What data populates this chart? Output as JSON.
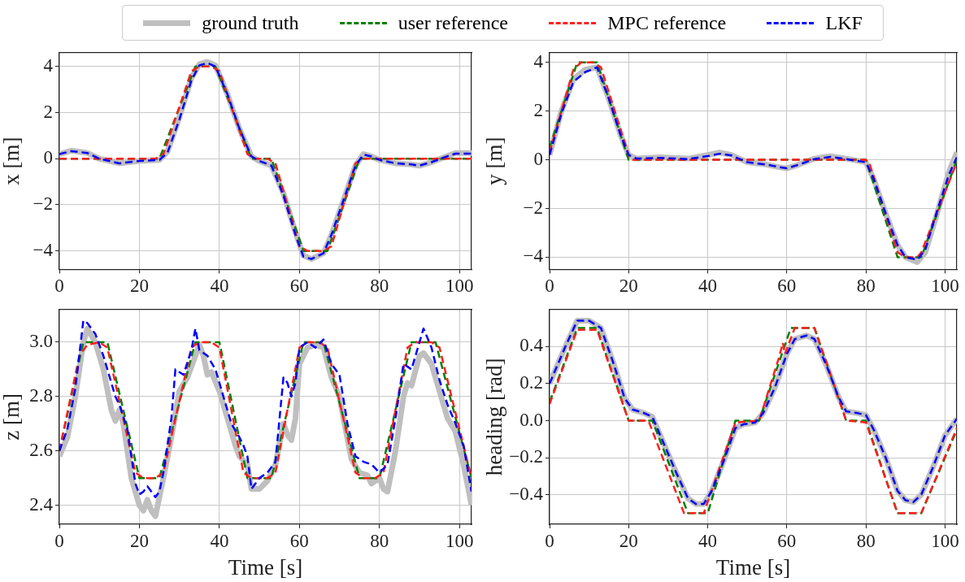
{
  "chart_data": [
    {
      "type": "line",
      "ylabel": "x [m]",
      "xlim": [
        0,
        103
      ],
      "xticks": [
        0,
        20,
        40,
        60,
        80,
        100
      ],
      "ylim": [
        -4.8,
        4.6
      ],
      "yticks": [
        -4,
        -2,
        0,
        2,
        4
      ],
      "grid": true,
      "legend": "top",
      "marker": "none",
      "series": [
        {
          "name": "ground truth",
          "color": "#bfbfbf",
          "line_style": "solid",
          "x": [
            0,
            3,
            7,
            10,
            15,
            20,
            25,
            27,
            30,
            33,
            35,
            37,
            39,
            42,
            45,
            48,
            50,
            53,
            56,
            59,
            61,
            63,
            66,
            68,
            71,
            74,
            76,
            78,
            80,
            84,
            88,
            90,
            93,
            96,
            99,
            103
          ],
          "values": [
            0.2,
            0.35,
            0.25,
            0,
            -0.2,
            -0.1,
            -0.05,
            0.3,
            1.8,
            3.5,
            4.1,
            4.2,
            4.05,
            2.8,
            1.3,
            0.1,
            -0.1,
            -0.3,
            -1.5,
            -3.2,
            -4.2,
            -4.35,
            -4.1,
            -3.3,
            -1.8,
            -0.3,
            0.2,
            0.1,
            -0.05,
            -0.2,
            -0.25,
            -0.3,
            -0.15,
            0.05,
            0.25,
            0.25
          ]
        },
        {
          "name": "user reference",
          "color": "#008000",
          "line_style": "dashed",
          "x": [
            0,
            25,
            34,
            39,
            48,
            53,
            61,
            67,
            75,
            103
          ],
          "values": [
            0,
            0,
            4,
            4,
            0,
            0,
            -4,
            -4,
            0,
            0
          ]
        },
        {
          "name": "MPC reference",
          "color": "#ff2020",
          "line_style": "dashed",
          "x": [
            0,
            24,
            26,
            33,
            35,
            38,
            40,
            47,
            49,
            52,
            54,
            60,
            62,
            66,
            68,
            74,
            76,
            103
          ],
          "values": [
            0,
            0,
            0.2,
            3.8,
            4,
            4,
            3.8,
            0.2,
            0,
            0,
            -0.2,
            -3.8,
            -4,
            -4,
            -3.8,
            -0.2,
            0,
            0
          ]
        },
        {
          "name": "LKF",
          "color": "#0000ff",
          "line_style": "dashed",
          "x": [
            0,
            3,
            7,
            10,
            15,
            20,
            25,
            27,
            30,
            33,
            35,
            37,
            39,
            42,
            45,
            48,
            50,
            53,
            56,
            59,
            61,
            63,
            66,
            68,
            71,
            74,
            76,
            78,
            80,
            84,
            88,
            90,
            93,
            96,
            99,
            103
          ],
          "values": [
            0.2,
            0.33,
            0.25,
            0,
            -0.2,
            -0.1,
            -0.05,
            0.25,
            1.7,
            3.4,
            4.05,
            4.15,
            4.0,
            2.8,
            1.3,
            0.1,
            -0.1,
            -0.3,
            -1.6,
            -3.3,
            -4.25,
            -4.35,
            -4.1,
            -3.3,
            -1.8,
            -0.3,
            0.18,
            0.1,
            -0.05,
            -0.2,
            -0.25,
            -0.3,
            -0.15,
            0.05,
            0.22,
            0.22
          ]
        }
      ]
    },
    {
      "type": "line",
      "ylabel": "y [m]",
      "xlim": [
        0,
        103
      ],
      "xticks": [
        0,
        20,
        40,
        60,
        80,
        100
      ],
      "ylim": [
        -4.5,
        4.4
      ],
      "yticks": [
        -4,
        -2,
        0,
        2,
        4
      ],
      "grid": true,
      "marker": "none",
      "series": [
        {
          "color": "#bfbfbf",
          "line_style": "solid",
          "x": [
            0,
            3,
            6,
            9,
            12,
            15,
            18,
            20,
            22,
            28,
            35,
            40,
            43,
            46,
            50,
            55,
            58,
            60,
            63,
            67,
            71,
            75,
            80,
            82,
            85,
            88,
            90,
            93,
            95,
            98,
            101,
            103
          ],
          "values": [
            0.2,
            2,
            3.3,
            3.7,
            3.8,
            2.5,
            1,
            0.2,
            0.05,
            0.1,
            0.05,
            0.2,
            0.3,
            0.2,
            -0.1,
            -0.2,
            -0.3,
            -0.35,
            -0.2,
            0.05,
            0.15,
            0.05,
            -0.1,
            -0.8,
            -2.2,
            -3.5,
            -4,
            -4.2,
            -3.8,
            -2.2,
            -0.5,
            0.3
          ]
        },
        {
          "color": "#008000",
          "line_style": "dashed",
          "x": [
            0,
            7,
            12,
            20,
            80,
            88,
            94,
            103
          ],
          "values": [
            0.5,
            4,
            4,
            0,
            0,
            -4,
            -4,
            0
          ]
        },
        {
          "color": "#ff2020",
          "line_style": "dashed",
          "x": [
            0,
            6,
            8,
            11,
            13,
            20,
            21,
            80,
            81,
            88,
            90,
            93,
            94,
            103
          ],
          "values": [
            0.3,
            3.7,
            4,
            4,
            3.8,
            0.2,
            0,
            0,
            -0.2,
            -3.8,
            -4,
            -4,
            -3.8,
            -0.1
          ]
        },
        {
          "color": "#0000ff",
          "line_style": "dashed",
          "x": [
            0,
            3,
            6,
            9,
            12,
            15,
            18,
            20,
            22,
            28,
            35,
            40,
            43,
            46,
            50,
            55,
            58,
            60,
            63,
            67,
            71,
            75,
            80,
            82,
            85,
            88,
            90,
            93,
            95,
            98,
            101,
            103
          ],
          "values": [
            0.2,
            1.9,
            3.2,
            3.6,
            3.8,
            2.5,
            1,
            0.2,
            0.05,
            0.08,
            0.03,
            0.15,
            0.25,
            0.18,
            -0.1,
            -0.2,
            -0.3,
            -0.35,
            -0.2,
            0.03,
            0.12,
            0.03,
            -0.1,
            -0.8,
            -2.2,
            -3.5,
            -4,
            -4.1,
            -3.7,
            -2.1,
            -0.6,
            0.1
          ]
        }
      ]
    },
    {
      "type": "line",
      "ylabel": "z [m]",
      "xlabel": "Time [s]",
      "xlim": [
        0,
        103
      ],
      "xticks": [
        0,
        20,
        40,
        60,
        80,
        100
      ],
      "ylim": [
        2.33,
        3.12
      ],
      "yticks": [
        {
          "value": 2.4,
          "label": "2.4"
        },
        {
          "value": 2.6,
          "label": "2.6"
        },
        {
          "value": 2.8,
          "label": "2.8"
        },
        {
          "value": 3.0,
          "label": "3.0"
        }
      ],
      "grid": true,
      "marker": "none",
      "series": [
        {
          "color": "#bfbfbf",
          "line_style": "solid",
          "x": [
            0,
            2,
            4,
            6,
            7,
            9,
            11,
            13,
            14,
            15,
            16,
            18,
            20,
            21,
            22,
            23,
            24,
            26,
            28,
            30,
            32,
            34,
            35,
            36,
            37,
            38,
            40,
            42,
            44,
            45,
            47,
            48,
            50,
            52,
            54,
            56,
            57,
            58,
            59,
            60,
            62,
            64,
            66,
            68,
            70,
            71,
            73,
            75,
            77,
            78,
            80,
            81,
            82,
            84,
            86,
            87,
            88,
            90,
            91,
            93,
            95,
            97,
            99,
            101,
            103
          ],
          "values": [
            2.58,
            2.65,
            2.8,
            3.0,
            3.05,
            3.0,
            2.9,
            2.75,
            2.71,
            2.75,
            2.7,
            2.5,
            2.4,
            2.38,
            2.42,
            2.38,
            2.36,
            2.5,
            2.65,
            2.82,
            2.87,
            2.95,
            2.99,
            2.95,
            2.88,
            2.89,
            2.82,
            2.72,
            2.62,
            2.58,
            2.55,
            2.46,
            2.46,
            2.49,
            2.55,
            2.7,
            2.66,
            2.64,
            2.72,
            2.92,
            2.98,
            2.99,
            2.98,
            2.87,
            2.8,
            2.72,
            2.57,
            2.52,
            2.51,
            2.48,
            2.5,
            2.46,
            2.45,
            2.6,
            2.8,
            2.85,
            2.84,
            2.95,
            2.96,
            2.92,
            2.82,
            2.72,
            2.67,
            2.55,
            2.4
          ]
        },
        {
          "color": "#008000",
          "line_style": "dashed",
          "x": [
            0,
            6,
            12,
            20,
            25,
            34,
            40,
            47,
            53,
            61,
            66,
            75,
            80,
            88,
            94,
            103
          ],
          "values": [
            2.6,
            3.0,
            3.0,
            2.5,
            2.5,
            3.0,
            3.0,
            2.5,
            2.5,
            3.0,
            3.0,
            2.5,
            2.5,
            3.0,
            3.0,
            2.5
          ]
        },
        {
          "color": "#ff2020",
          "line_style": "dashed",
          "x": [
            0,
            5,
            7,
            10,
            12,
            19,
            21,
            24,
            26,
            33,
            35,
            38,
            40,
            46,
            48,
            52,
            54,
            60,
            62,
            65,
            67,
            74,
            76,
            79,
            81,
            87,
            89,
            93,
            95,
            103
          ],
          "values": [
            2.6,
            2.95,
            2.99,
            3.0,
            2.98,
            2.52,
            2.5,
            2.5,
            2.52,
            2.98,
            3.0,
            3.0,
            2.98,
            2.52,
            2.5,
            2.5,
            2.52,
            2.98,
            3.0,
            3.0,
            2.98,
            2.52,
            2.5,
            2.5,
            2.52,
            2.98,
            3.0,
            3.0,
            2.98,
            2.5
          ]
        },
        {
          "color": "#0000ff",
          "line_style": "dashed",
          "x": [
            0,
            2,
            4,
            6,
            7,
            9,
            11,
            13,
            14,
            15,
            17,
            19,
            20,
            21,
            22,
            24,
            25,
            26,
            28,
            29,
            31,
            33,
            34,
            35,
            37,
            39,
            41,
            43,
            45,
            46,
            47,
            48,
            50,
            52,
            54,
            56,
            57,
            58,
            59,
            60,
            62,
            64,
            66,
            68,
            70,
            72,
            74,
            76,
            78,
            80,
            82,
            84,
            86,
            88,
            90,
            91,
            93,
            95,
            97,
            99,
            101,
            103
          ],
          "values": [
            2.6,
            2.68,
            2.83,
            3.08,
            3.07,
            3.03,
            2.95,
            2.85,
            2.8,
            2.77,
            2.68,
            2.48,
            2.44,
            2.45,
            2.47,
            2.43,
            2.45,
            2.52,
            2.72,
            2.9,
            2.88,
            2.97,
            3.05,
            2.97,
            2.95,
            2.9,
            2.8,
            2.7,
            2.65,
            2.62,
            2.58,
            2.46,
            2.5,
            2.52,
            2.56,
            2.87,
            2.85,
            2.8,
            2.85,
            2.98,
            3.0,
            2.98,
            3.01,
            2.92,
            2.88,
            2.7,
            2.58,
            2.56,
            2.55,
            2.52,
            2.55,
            2.72,
            2.92,
            2.9,
            3.0,
            3.05,
            2.98,
            2.86,
            2.77,
            2.7,
            2.62,
            2.45
          ]
        }
      ]
    },
    {
      "type": "line",
      "ylabel": "heading [rad]",
      "xlabel": "Time [s]",
      "xlim": [
        0,
        103
      ],
      "xticks": [
        0,
        20,
        40,
        60,
        80,
        100
      ],
      "ylim": [
        -0.56,
        0.6
      ],
      "yticks": [
        -0.4,
        -0.2,
        {
          "value": 0,
          "label": "0.0"
        },
        0.2,
        0.4
      ],
      "grid": true,
      "marker": "none",
      "series": [
        {
          "color": "#bfbfbf",
          "line_style": "solid",
          "x": [
            0,
            4,
            7,
            10,
            13,
            16,
            19,
            21,
            24,
            26,
            28,
            32,
            35,
            37,
            39,
            41,
            44,
            47,
            49,
            52,
            54,
            57,
            60,
            62,
            65,
            67,
            70,
            73,
            75,
            78,
            80,
            82,
            85,
            88,
            90,
            92,
            94,
            97,
            100,
            103
          ],
          "values": [
            0.2,
            0.4,
            0.54,
            0.54,
            0.5,
            0.32,
            0.12,
            0.06,
            0.04,
            0.02,
            -0.08,
            -0.28,
            -0.42,
            -0.45,
            -0.45,
            -0.38,
            -0.22,
            -0.04,
            -0.02,
            -0.01,
            0.04,
            0.18,
            0.36,
            0.44,
            0.46,
            0.44,
            0.3,
            0.13,
            0.05,
            0.04,
            0.03,
            -0.05,
            -0.2,
            -0.38,
            -0.43,
            -0.44,
            -0.4,
            -0.25,
            -0.08,
            0.01
          ]
        },
        {
          "color": "#008000",
          "line_style": "dashed",
          "x": [
            0,
            7,
            12,
            20,
            26,
            35,
            40,
            47,
            53,
            61,
            67,
            75,
            80,
            88,
            94,
            103
          ],
          "values": [
            0.1,
            0.5,
            0.5,
            0,
            0,
            -0.5,
            -0.5,
            0,
            0,
            0.5,
            0.5,
            0,
            0,
            -0.5,
            -0.5,
            -0.05
          ]
        },
        {
          "color": "#ff2020",
          "line_style": "dashed",
          "x": [
            0,
            7,
            12,
            20,
            25,
            34,
            39,
            47,
            53,
            58,
            59,
            59.5,
            62,
            67,
            75,
            80,
            88,
            94,
            103
          ],
          "values": [
            0.09,
            0.49,
            0.49,
            0,
            0,
            -0.5,
            -0.5,
            -0.01,
            0,
            0.34,
            0.42,
            0.36,
            0.5,
            0.5,
            0,
            -0.01,
            -0.5,
            -0.5,
            -0.04
          ]
        },
        {
          "color": "#0000ff",
          "line_style": "dashed",
          "x": [
            0,
            4,
            7,
            10,
            13,
            16,
            19,
            21,
            24,
            26,
            28,
            32,
            35,
            37,
            39,
            41,
            44,
            47,
            49,
            52,
            54,
            57,
            60,
            62,
            65,
            67,
            70,
            73,
            75,
            78,
            80,
            82,
            85,
            88,
            90,
            92,
            94,
            97,
            100,
            103
          ],
          "values": [
            0.2,
            0.4,
            0.54,
            0.54,
            0.5,
            0.32,
            0.12,
            0.06,
            0.04,
            0.02,
            -0.08,
            -0.28,
            -0.42,
            -0.45,
            -0.45,
            -0.38,
            -0.22,
            -0.04,
            -0.02,
            -0.01,
            0.04,
            0.18,
            0.36,
            0.44,
            0.46,
            0.44,
            0.3,
            0.13,
            0.05,
            0.04,
            0.03,
            -0.05,
            -0.2,
            -0.38,
            -0.43,
            -0.44,
            -0.4,
            -0.25,
            -0.08,
            0.01
          ]
        }
      ]
    }
  ]
}
